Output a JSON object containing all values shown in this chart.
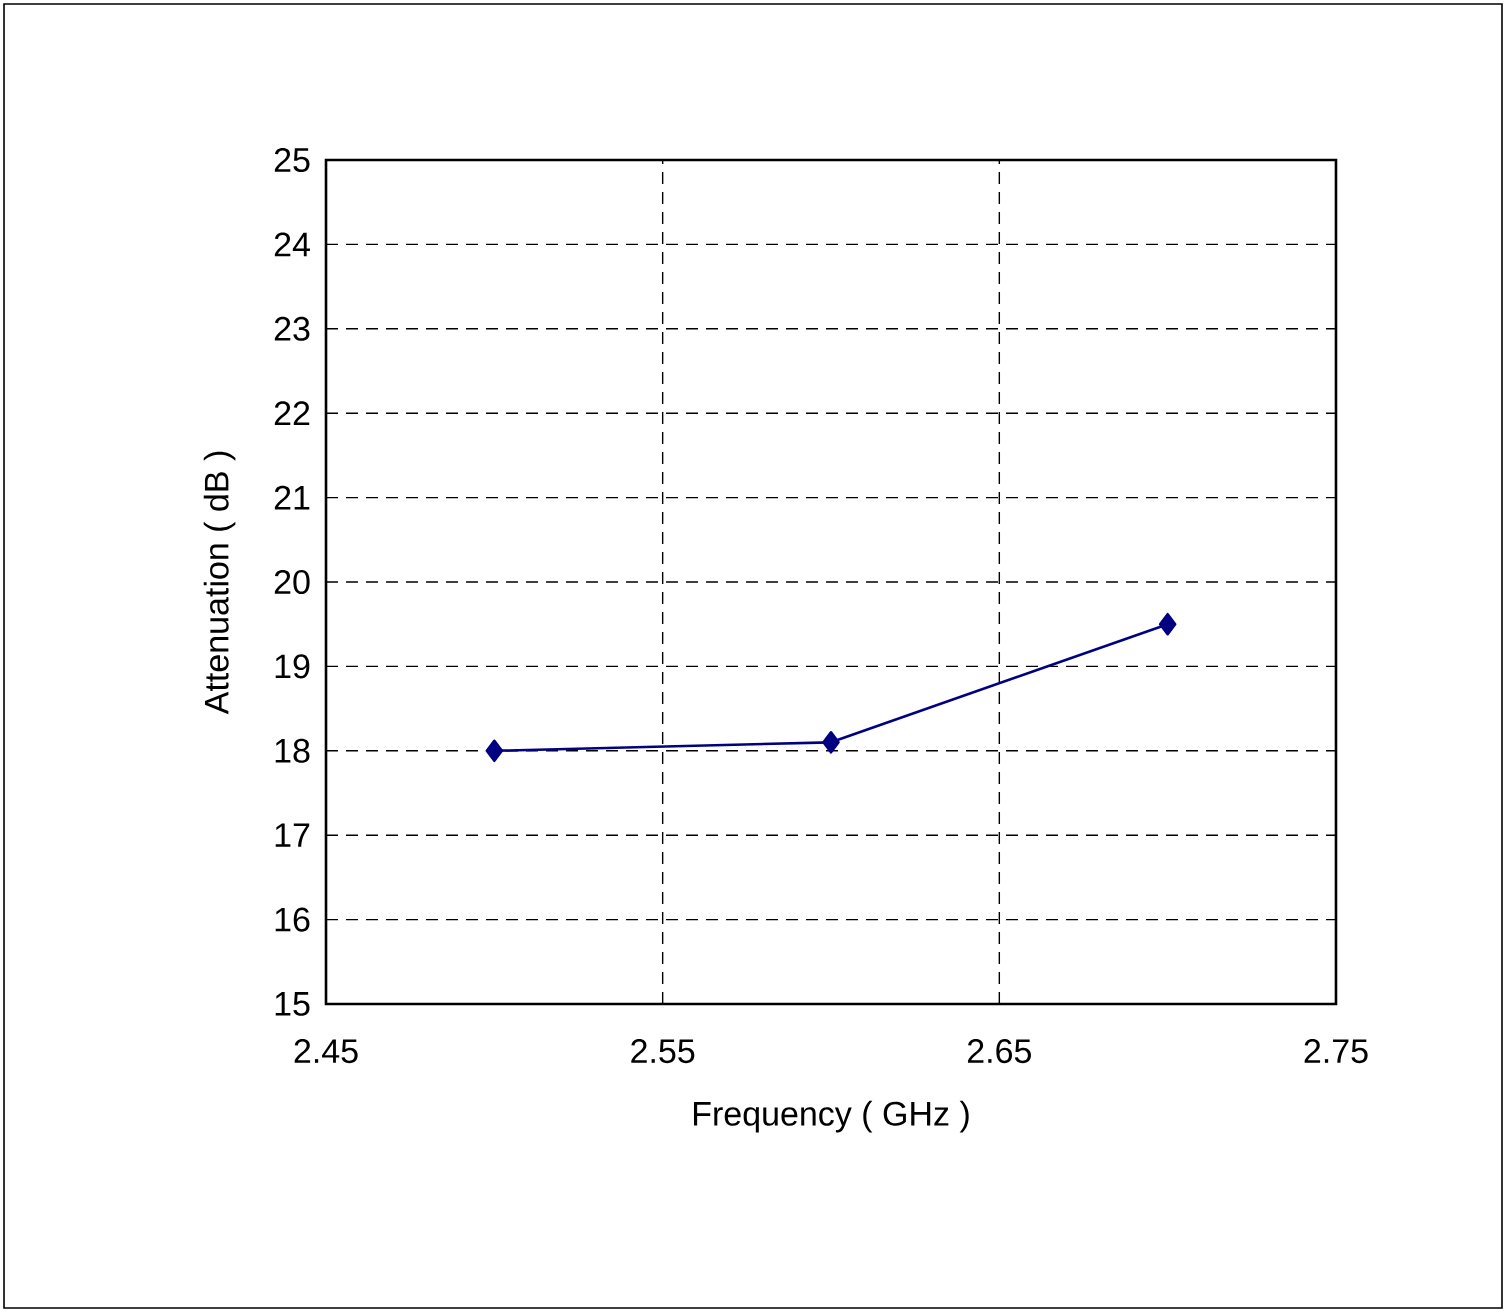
{
  "chart_data": {
    "type": "line",
    "xlabel": "Frequency ( GHz )",
    "ylabel": "Attenuation ( dB )",
    "x": [
      2.5,
      2.6,
      2.7
    ],
    "series": [
      {
        "color": "#000080",
        "values": [
          18.0,
          18.1,
          19.5
        ]
      }
    ],
    "xlim": [
      2.45,
      2.75
    ],
    "xticks": [
      2.45,
      2.55,
      2.65,
      2.75
    ],
    "ylim": [
      15,
      25
    ],
    "yticks": [
      15,
      16,
      17,
      18,
      19,
      20,
      21,
      22,
      23,
      24,
      25
    ],
    "grid": true,
    "marker": "diamond",
    "line_style": "solid"
  }
}
